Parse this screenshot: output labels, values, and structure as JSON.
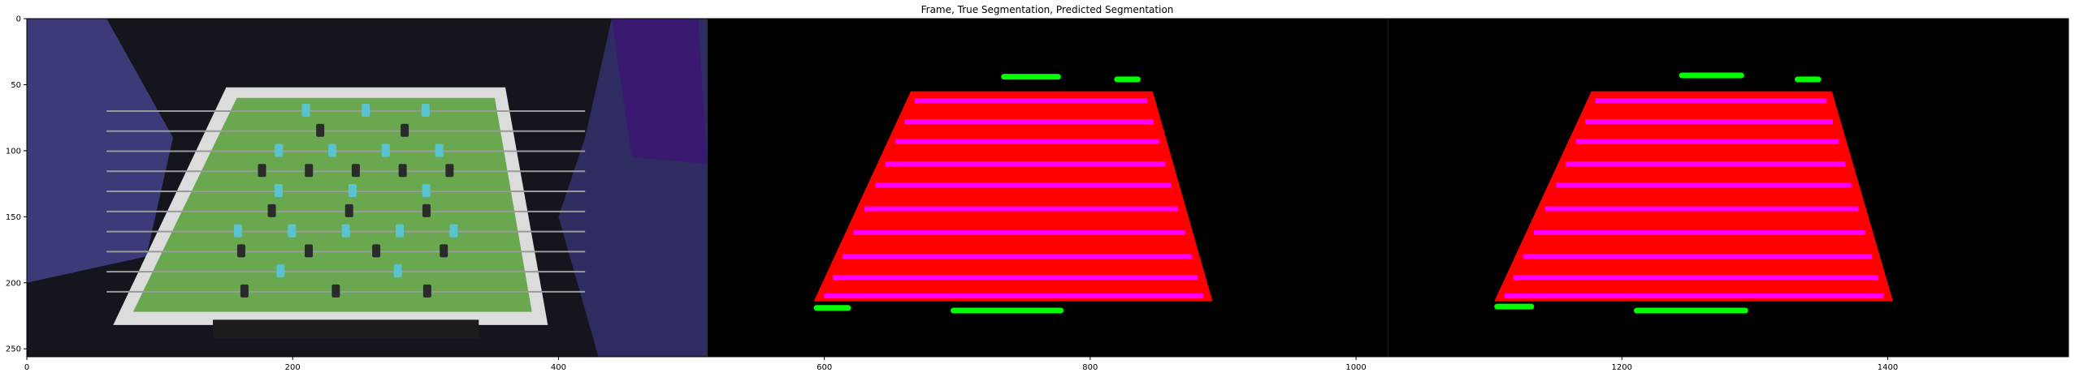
{
  "chart_data": {
    "type": "image",
    "title": "Frame, True Segmentation, Predicted Segmentation",
    "xlabel": "",
    "ylabel": "",
    "xlim": [
      0,
      1536
    ],
    "ylim": [
      256,
      0
    ],
    "x_ticks": [
      0,
      200,
      400,
      600,
      800,
      1000,
      1200,
      1400
    ],
    "y_ticks": [
      0,
      50,
      100,
      150,
      200,
      250
    ],
    "grid": false,
    "panels": [
      {
        "name": "Frame",
        "x_range": [
          0,
          512
        ],
        "content": "foosball table photograph"
      },
      {
        "name": "True Segmentation",
        "x_range": [
          512,
          1024
        ],
        "offset_x": 512,
        "table_polygon": [
          [
            665,
            55
          ],
          [
            847,
            55
          ],
          [
            892,
            214
          ],
          [
            592,
            214
          ]
        ],
        "rod_stripes_y": [
          62,
          78,
          93,
          110,
          126,
          144,
          162,
          180,
          196,
          210
        ],
        "green_blobs": [
          {
            "x": [
              733,
              778
            ],
            "y": 44
          },
          {
            "x": [
              818,
              838
            ],
            "y": 46
          },
          {
            "x": [
              592,
              620
            ],
            "y": 219
          },
          {
            "x": [
              695,
              780
            ],
            "y": 221
          }
        ]
      },
      {
        "name": "Predicted Segmentation",
        "x_range": [
          1024,
          1536
        ],
        "offset_x": 1024,
        "table_polygon": [
          [
            1177,
            55
          ],
          [
            1358,
            55
          ],
          [
            1404,
            214
          ],
          [
            1104,
            214
          ]
        ],
        "rod_stripes_y": [
          62,
          78,
          93,
          110,
          126,
          144,
          162,
          180,
          196,
          210
        ],
        "green_blobs": [
          {
            "x": [
              1243,
              1292
            ],
            "y": 43
          },
          {
            "x": [
              1330,
              1350
            ],
            "y": 46
          },
          {
            "x": [
              1104,
              1134
            ],
            "y": 218
          },
          {
            "x": [
              1209,
              1295
            ],
            "y": 221
          }
        ]
      }
    ],
    "colors": {
      "table": "#ff0000",
      "rods": "#ff00ff",
      "players": "#00ff00",
      "background": "#000000"
    }
  }
}
